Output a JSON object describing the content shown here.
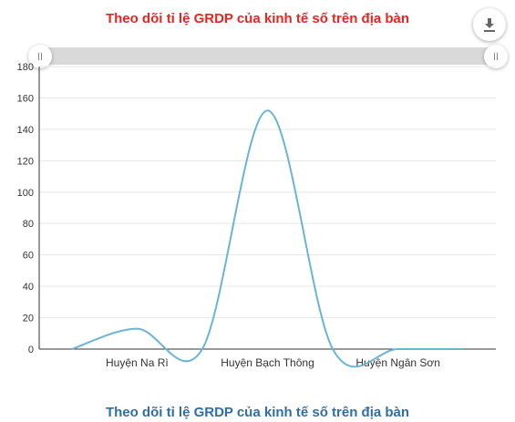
{
  "chart_data": {
    "type": "line",
    "title": "Theo dõi tỉ lệ GRDP của kinh tế số trên địa bàn",
    "caption": "Theo dõi tỉ lệ GRDP của kinh tế số trên địa bàn",
    "xlabel": "",
    "ylabel": "",
    "ylim": [
      0,
      180
    ],
    "yticks": [
      0,
      20,
      40,
      60,
      80,
      100,
      120,
      140,
      160,
      180
    ],
    "grid": true,
    "legend": "none",
    "categories": [
      "",
      "Huyện Na Rì",
      "",
      "Huyện Bạch Thông",
      "",
      "Huyện Ngân Sơn",
      ""
    ],
    "x_tick_labels": [
      "Huyện Na Rì",
      "Huyện Bạch Thông",
      "Huyện Ngân Sơn"
    ],
    "series": [
      {
        "values": [
          0,
          13,
          0,
          152,
          0,
          0,
          0
        ]
      }
    ],
    "colors": {
      "line": "#6ab4d6",
      "title": "#e8251f",
      "caption": "#2e6fa9"
    }
  },
  "toolbar": {
    "download_icon": "download-icon"
  }
}
